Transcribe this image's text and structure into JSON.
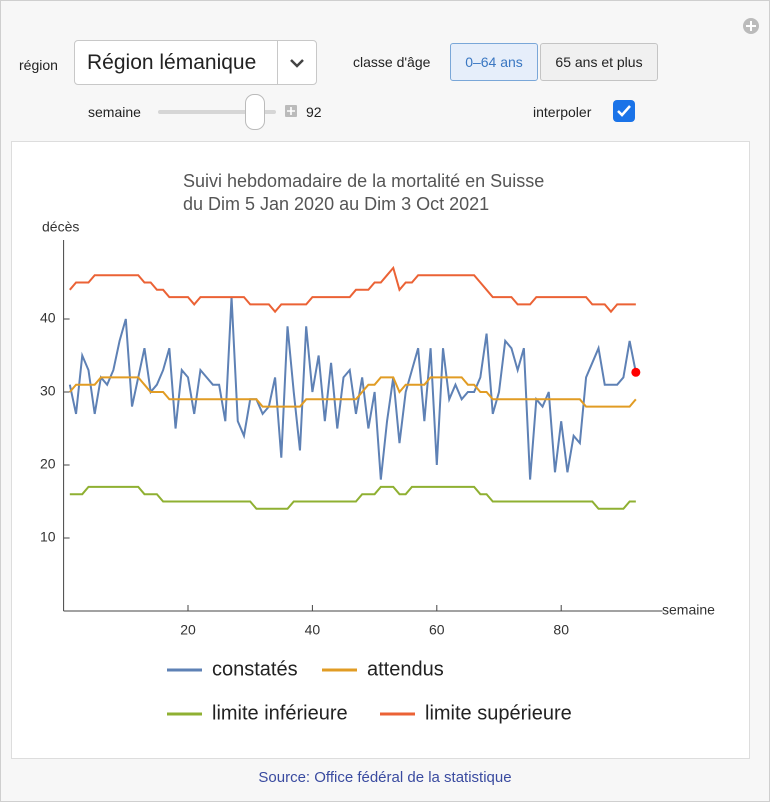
{
  "controls": {
    "region_label": "région",
    "region_value": "Région lémanique",
    "age_label": "classe d'âge",
    "age_options": [
      "0–64 ans",
      "65 ans et plus"
    ],
    "week_label": "semaine",
    "week_value": 92,
    "interpolate_label": "interpoler",
    "interpolate": true
  },
  "chart_data": {
    "type": "line",
    "title": "Suivi hebdomadaire de la mortalité en Suisse",
    "subtitle": "du Dim 5 Jan 2020 au Dim 3 Oct 2021",
    "y_label": "décès",
    "x_label": "semaine",
    "x": [
      1,
      2,
      3,
      4,
      5,
      6,
      7,
      8,
      9,
      10,
      11,
      12,
      13,
      14,
      15,
      16,
      17,
      18,
      19,
      20,
      21,
      22,
      23,
      24,
      25,
      26,
      27,
      28,
      29,
      30,
      31,
      32,
      33,
      34,
      35,
      36,
      37,
      38,
      39,
      40,
      41,
      42,
      43,
      44,
      45,
      46,
      47,
      48,
      49,
      50,
      51,
      52,
      53,
      54,
      55,
      56,
      57,
      58,
      59,
      60,
      61,
      62,
      63,
      64,
      65,
      66,
      67,
      68,
      69,
      70,
      71,
      72,
      73,
      74,
      75,
      76,
      77,
      78,
      79,
      80,
      81,
      82,
      83,
      84,
      85,
      86,
      87,
      88,
      89,
      90,
      91,
      92
    ],
    "xlim": [
      0,
      95
    ],
    "xticks": [
      20,
      40,
      60,
      80
    ],
    "ylim": [
      0,
      50
    ],
    "yticks": [
      10,
      20,
      30,
      40
    ],
    "series": [
      {
        "name": "constatés",
        "color": "#5e81b5",
        "values": [
          31,
          27,
          35,
          33,
          27,
          32,
          31,
          33,
          37,
          40,
          28,
          32,
          36,
          30,
          31,
          33,
          36,
          25,
          33,
          32,
          27,
          33,
          32,
          31,
          31,
          26,
          43,
          26,
          24,
          29,
          29,
          27,
          28,
          32,
          21,
          39,
          30,
          22,
          39,
          30,
          35,
          26,
          34,
          25,
          32,
          33,
          27,
          32,
          25,
          30,
          18,
          26,
          32,
          23,
          30,
          33,
          36,
          26,
          36,
          20,
          36,
          29,
          31,
          29,
          30,
          30,
          32,
          38,
          27,
          30,
          37,
          36,
          33,
          36,
          18,
          29,
          28,
          30,
          19,
          26,
          19,
          24,
          23,
          32,
          34,
          36,
          31,
          31,
          31,
          32,
          37,
          32.7
        ]
      },
      {
        "name": "attendus",
        "color": "#e19c24",
        "values": [
          30,
          31,
          31,
          31,
          31,
          32,
          32,
          32,
          32,
          32,
          32,
          32,
          31,
          30,
          30,
          30,
          29,
          29,
          29,
          29,
          29,
          29,
          29,
          29,
          29,
          29,
          29,
          29,
          29,
          29,
          29,
          28,
          28,
          28,
          28,
          28,
          28,
          28,
          29,
          29,
          29,
          29,
          29,
          29,
          29,
          29,
          29,
          30,
          31,
          31,
          32,
          32,
          32,
          30,
          31,
          31,
          31,
          31,
          32,
          32,
          32,
          32,
          32,
          32,
          31,
          31,
          30,
          30,
          29,
          29,
          29,
          29,
          29,
          29,
          29,
          29,
          29,
          29,
          29,
          29,
          29,
          29,
          29,
          28,
          28,
          28,
          28,
          28,
          28,
          28,
          28,
          29
        ]
      },
      {
        "name": "limite inférieure",
        "color": "#8fb032",
        "values": [
          16,
          16,
          16,
          17,
          17,
          17,
          17,
          17,
          17,
          17,
          17,
          17,
          16,
          16,
          16,
          15,
          15,
          15,
          15,
          15,
          15,
          15,
          15,
          15,
          15,
          15,
          15,
          15,
          15,
          15,
          14,
          14,
          14,
          14,
          14,
          14,
          15,
          15,
          15,
          15,
          15,
          15,
          15,
          15,
          15,
          15,
          15,
          16,
          16,
          16,
          17,
          17,
          17,
          16,
          16,
          17,
          17,
          17,
          17,
          17,
          17,
          17,
          17,
          17,
          17,
          17,
          16,
          16,
          15,
          15,
          15,
          15,
          15,
          15,
          15,
          15,
          15,
          15,
          15,
          15,
          15,
          15,
          15,
          15,
          15,
          14,
          14,
          14,
          14,
          14,
          15,
          15
        ]
      },
      {
        "name": "limite supérieure",
        "color": "#eb6235",
        "values": [
          44,
          45,
          45,
          45,
          46,
          46,
          46,
          46,
          46,
          46,
          46,
          46,
          45,
          45,
          44,
          44,
          43,
          43,
          43,
          43,
          42,
          43,
          43,
          43,
          43,
          43,
          43,
          43,
          43,
          42,
          42,
          42,
          42,
          41,
          42,
          42,
          42,
          42,
          42,
          43,
          43,
          43,
          43,
          43,
          43,
          43,
          44,
          44,
          44,
          45,
          45,
          46,
          47,
          44,
          45,
          45,
          46,
          46,
          46,
          46,
          46,
          46,
          46,
          46,
          46,
          46,
          45,
          44,
          43,
          43,
          43,
          43,
          42,
          42,
          42,
          43,
          43,
          43,
          43,
          43,
          43,
          43,
          43,
          43,
          42,
          42,
          42,
          41,
          42,
          42,
          42,
          42
        ]
      }
    ],
    "highlight_color": "#ff0000"
  },
  "source": "Source: Office fédéral de la statistique"
}
